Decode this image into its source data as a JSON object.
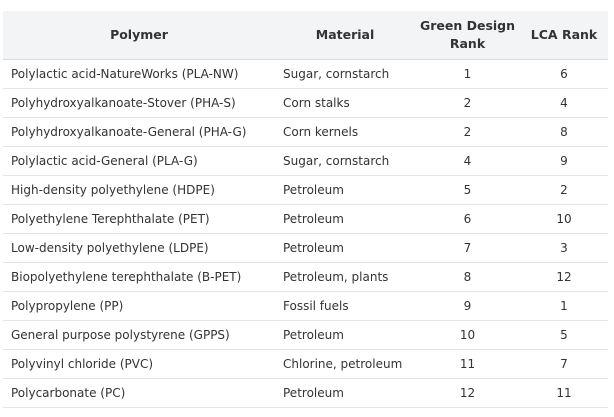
{
  "table": {
    "headers": {
      "polymer": "Polymer",
      "material": "Material",
      "green_design_rank_line1": "Green Design",
      "green_design_rank_line2": "Rank",
      "lca_rank": "LCA Rank"
    },
    "rows": [
      {
        "polymer": "Polylactic acid-NatureWorks (PLA-NW)",
        "material": "Sugar, cornstarch",
        "green_design_rank": "1",
        "lca_rank": "6"
      },
      {
        "polymer": "Polyhydroxyalkanoate-Stover (PHA-S)",
        "material": "Corn stalks",
        "green_design_rank": "2",
        "lca_rank": "4"
      },
      {
        "polymer": "Polyhydroxyalkanoate-General (PHA-G)",
        "material": "Corn kernels",
        "green_design_rank": "2",
        "lca_rank": "8"
      },
      {
        "polymer": "Polylactic acid-General (PLA-G)",
        "material": "Sugar, cornstarch",
        "green_design_rank": "4",
        "lca_rank": "9"
      },
      {
        "polymer": "High-density polyethylene (HDPE)",
        "material": "Petroleum",
        "green_design_rank": "5",
        "lca_rank": "2"
      },
      {
        "polymer": "Polyethylene Terephthalate (PET)",
        "material": "Petroleum",
        "green_design_rank": "6",
        "lca_rank": "10"
      },
      {
        "polymer": "Low-density polyethylene (LDPE)",
        "material": "Petroleum",
        "green_design_rank": "7",
        "lca_rank": "3"
      },
      {
        "polymer": "Biopolyethylene terephthalate (B-PET)",
        "material": "Petroleum, plants",
        "green_design_rank": "8",
        "lca_rank": "12"
      },
      {
        "polymer": "Polypropylene (PP)",
        "material": "Fossil fuels",
        "green_design_rank": "9",
        "lca_rank": "1"
      },
      {
        "polymer": "General purpose polystyrene (GPPS)",
        "material": "Petroleum",
        "green_design_rank": "10",
        "lca_rank": "5"
      },
      {
        "polymer": "Polyvinyl chloride (PVC)",
        "material": "Chlorine, petroleum",
        "green_design_rank": "11",
        "lca_rank": "7"
      },
      {
        "polymer": "Polycarbonate (PC)",
        "material": "Petroleum",
        "green_design_rank": "12",
        "lca_rank": "11"
      }
    ]
  }
}
